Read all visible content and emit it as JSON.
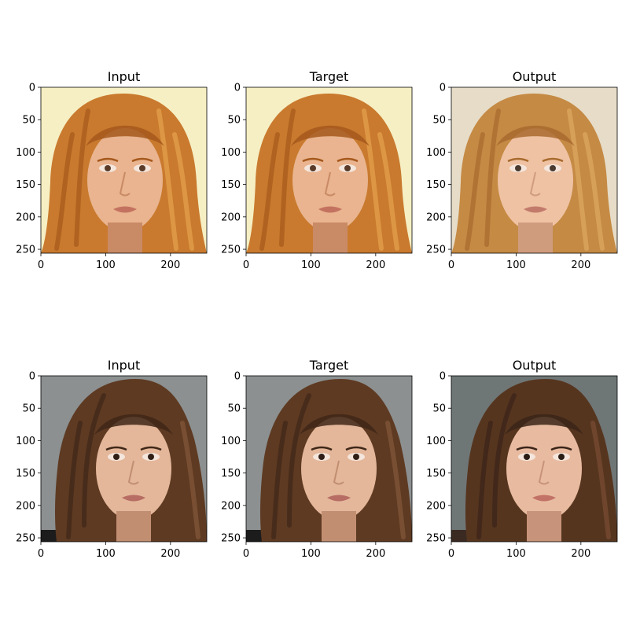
{
  "figure": {
    "rows": [
      {
        "panels": [
          {
            "title": "Input"
          },
          {
            "title": "Target"
          },
          {
            "title": "Output"
          }
        ],
        "palette": {
          "background": "#f6efc4",
          "hair_dark": "#a5581c",
          "hair_mid": "#c97a2e",
          "hair_light": "#e6a44f",
          "skin": "#e9b48f",
          "skin_shadow": "#c98a66",
          "lips": "#c47260",
          "eyes": "#5a3b2a"
        },
        "output_palette": {
          "background": "#e6dcc8",
          "hair_dark": "#a86a2e",
          "hair_mid": "#c58a44",
          "hair_light": "#ddaa63",
          "skin": "#efc2a3",
          "skin_shadow": "#cf9c7e",
          "lips": "#c27b6b",
          "eyes": "#4b3a30"
        }
      },
      {
        "panels": [
          {
            "title": "Input"
          },
          {
            "title": "Target"
          },
          {
            "title": "Output"
          }
        ],
        "palette": {
          "background": "#8c9091",
          "hair_dark": "#3f2718",
          "hair_mid": "#5e3a22",
          "hair_light": "#84583a",
          "skin": "#e4b79a",
          "skin_shadow": "#c28e72",
          "lips": "#b76d63",
          "eyes": "#2f1f16"
        },
        "output_palette": {
          "background": "#6f7676",
          "hair_dark": "#3a2418",
          "hair_mid": "#56351f",
          "hair_light": "#7a4f33",
          "skin": "#e8bba0",
          "skin_shadow": "#c7937a",
          "lips": "#c27266",
          "eyes": "#2a1d15"
        }
      }
    ],
    "x_ticks": [
      "0",
      "100",
      "200"
    ],
    "x_tick_values": [
      0,
      100,
      200
    ],
    "y_ticks": [
      "0",
      "50",
      "100",
      "150",
      "200",
      "250"
    ],
    "y_tick_values": [
      0,
      50,
      100,
      150,
      200,
      250
    ],
    "image_extent": 256
  }
}
